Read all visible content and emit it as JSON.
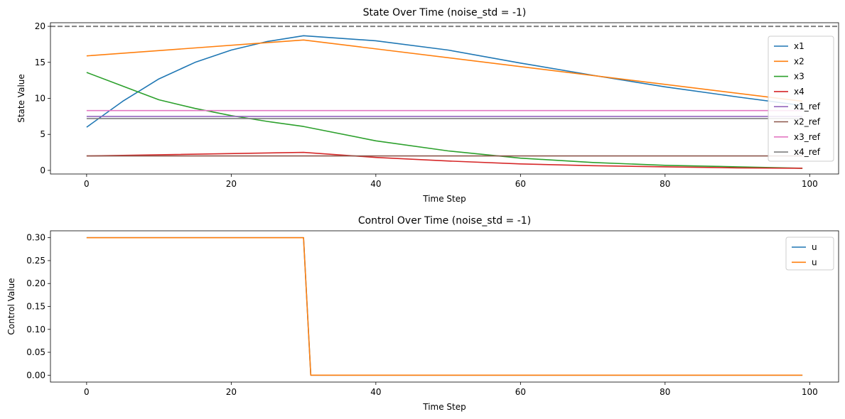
{
  "chart_data": [
    {
      "type": "line",
      "title": "State Over Time (noise_std = -1)",
      "xlabel": "Time Step",
      "ylabel": "State Value",
      "xlim": [
        -5,
        104
      ],
      "ylim": [
        -0.5,
        20.5
      ],
      "xticks": [
        0,
        20,
        40,
        60,
        80,
        100
      ],
      "yticks": [
        0,
        5,
        10,
        15,
        20
      ],
      "legend_position": "upper-right",
      "hline": {
        "y": 20,
        "color": "#808080",
        "style": "dashed"
      },
      "series": [
        {
          "name": "x1",
          "color": "#1f77b4",
          "x": [
            0,
            5,
            10,
            15,
            20,
            25,
            30,
            40,
            50,
            60,
            70,
            80,
            90,
            99
          ],
          "y": [
            6.0,
            9.6,
            12.7,
            15.0,
            16.7,
            17.9,
            18.7,
            18.0,
            16.7,
            14.9,
            13.2,
            11.6,
            10.2,
            9.0
          ]
        },
        {
          "name": "x2",
          "color": "#ff7f0e",
          "x": [
            0,
            30,
            99
          ],
          "y": [
            15.9,
            18.1,
            9.6
          ]
        },
        {
          "name": "x3",
          "color": "#2ca02c",
          "x": [
            0,
            5,
            10,
            15,
            20,
            25,
            30,
            40,
            50,
            60,
            70,
            80,
            90,
            99
          ],
          "y": [
            13.6,
            11.7,
            9.8,
            8.6,
            7.6,
            6.8,
            6.1,
            4.1,
            2.7,
            1.7,
            1.1,
            0.7,
            0.5,
            0.3
          ]
        },
        {
          "name": "x4",
          "color": "#d62728",
          "x": [
            0,
            30,
            40,
            50,
            60,
            70,
            80,
            90,
            99
          ],
          "y": [
            2.0,
            2.5,
            1.8,
            1.3,
            0.9,
            0.65,
            0.5,
            0.35,
            0.3
          ]
        },
        {
          "name": "x1_ref",
          "color": "#9467bd",
          "x": [
            0,
            99
          ],
          "y": [
            7.5,
            7.5
          ]
        },
        {
          "name": "x2_ref",
          "color": "#8c564b",
          "x": [
            0,
            99
          ],
          "y": [
            2.0,
            2.0
          ]
        },
        {
          "name": "x3_ref",
          "color": "#e377c2",
          "x": [
            0,
            99
          ],
          "y": [
            8.3,
            8.3
          ]
        },
        {
          "name": "x4_ref",
          "color": "#7f7f7f",
          "x": [
            0,
            99
          ],
          "y": [
            7.2,
            7.2
          ]
        }
      ]
    },
    {
      "type": "line",
      "title": "Control Over Time (noise_std = -1)",
      "xlabel": "Time Step",
      "ylabel": "Control Value",
      "xlim": [
        -5,
        104
      ],
      "ylim": [
        -0.015,
        0.315
      ],
      "xticks": [
        0,
        20,
        40,
        60,
        80,
        100
      ],
      "yticks": [
        0.0,
        0.05,
        0.1,
        0.15,
        0.2,
        0.25,
        0.3
      ],
      "yticklabels": [
        "0.00",
        "0.05",
        "0.10",
        "0.15",
        "0.20",
        "0.25",
        "0.30"
      ],
      "legend_position": "upper-right",
      "series": [
        {
          "name": "u",
          "color": "#1f77b4",
          "x": [
            0,
            30,
            31,
            99
          ],
          "y": [
            0.3,
            0.3,
            0.0,
            0.0
          ]
        },
        {
          "name": "u",
          "color": "#ff7f0e",
          "x": [
            0,
            30,
            31,
            99
          ],
          "y": [
            0.3,
            0.3,
            0.0,
            0.0
          ]
        }
      ]
    }
  ]
}
